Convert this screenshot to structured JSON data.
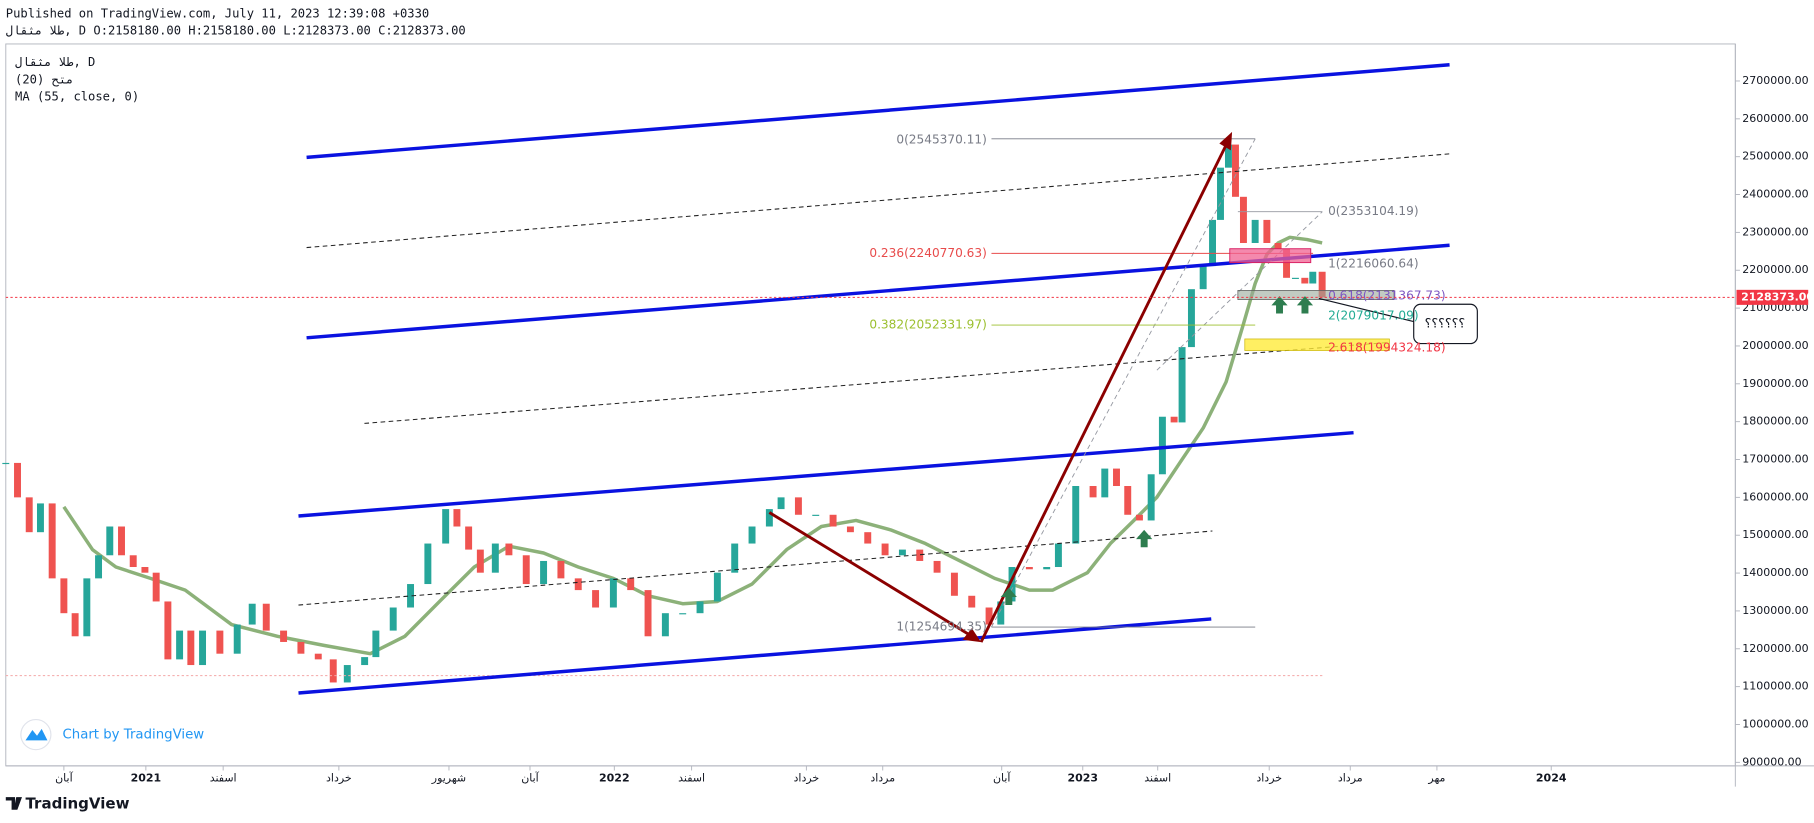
{
  "header": {
    "published": "Published on TradingView.com, July 11, 2023 12:39:08 +0330",
    "symbol_line": "طلا مثقال, D O:2158180.00 H:2158180.00 L:2128373.00 C:2128373.00"
  },
  "chart_data": {
    "type": "candlestick",
    "symbol": "طلا مثقال, D",
    "indicator": "متح (20)",
    "x": [
      2020.701,
      2020.726,
      2020.751,
      2020.775,
      2020.8,
      2020.825,
      2020.849,
      2020.874,
      2020.899,
      2020.923,
      2020.948,
      2020.973,
      2020.998,
      2021.022,
      2021.047,
      2021.072,
      2021.096,
      2021.121,
      2021.158,
      2021.195,
      2021.227,
      2021.257,
      2021.294,
      2021.331,
      2021.368,
      2021.4,
      2021.43,
      2021.467,
      2021.491,
      2021.528,
      2021.565,
      2021.602,
      2021.64,
      2021.664,
      2021.689,
      2021.714,
      2021.746,
      2021.775,
      2021.812,
      2021.849,
      2021.886,
      2021.923,
      2021.96,
      2021.998,
      2022.035,
      2022.072,
      2022.109,
      2022.146,
      2022.183,
      2022.22,
      2022.257,
      2022.294,
      2022.331,
      2022.356,
      2022.393,
      2022.43,
      2022.467,
      2022.504,
      2022.541,
      2022.578,
      2022.615,
      2022.652,
      2022.689,
      2022.726,
      2022.763,
      2022.8,
      2022.825,
      2022.849,
      2022.886,
      2022.923,
      2022.948,
      2022.985,
      2023.022,
      2023.047,
      2023.072,
      2023.096,
      2023.121,
      2023.146,
      2023.17,
      2023.195,
      2023.212,
      2023.232,
      2023.257,
      2023.277,
      2023.294,
      2023.311,
      2023.326,
      2023.343,
      2023.368,
      2023.393,
      2023.417,
      2023.435,
      2023.454,
      2023.474,
      2023.491,
      2023.511
    ],
    "values": [
      1691000,
      1600000,
      1508000,
      1584000,
      1386000,
      1294000,
      1233000,
      1386000,
      1447000,
      1523000,
      1447000,
      1416000,
      1401000,
      1325000,
      1172000,
      1248000,
      1157000,
      1248000,
      1187000,
      1264000,
      1319000,
      1248000,
      1218000,
      1187000,
      1172000,
      1111000,
      1157000,
      1178000,
      1248000,
      1309000,
      1371000,
      1478000,
      1569000,
      1523000,
      1462000,
      1401000,
      1478000,
      1447000,
      1371000,
      1432000,
      1386000,
      1355000,
      1309000,
      1386000,
      1355000,
      1233000,
      1294000,
      1294000,
      1325000,
      1401000,
      1478000,
      1523000,
      1569000,
      1600000,
      1554000,
      1554000,
      1523000,
      1508000,
      1478000,
      1447000,
      1462000,
      1432000,
      1401000,
      1340000,
      1309000,
      1264000,
      1325000,
      1416000,
      1410000,
      1416000,
      1478000,
      1630000,
      1600000,
      1676000,
      1630000,
      1554000,
      1539000,
      1661000,
      1813000,
      1798000,
      1997000,
      2150000,
      2211000,
      2333000,
      2471000,
      2532000,
      2394000,
      2272000,
      2333000,
      2272000,
      2257000,
      2180000,
      2180000,
      2165000,
      2196000,
      2128373
    ],
    "up_color": "#26a69a",
    "down_color": "#ef5350",
    "overlays": [
      {
        "type": "line",
        "name": "MA (55, close, 0)",
        "color": "#7fa86a",
        "x": [
          2020.825,
          2020.886,
          2020.936,
          2021.01,
          2021.084,
          2021.183,
          2021.281,
          2021.38,
          2021.479,
          2021.553,
          2021.627,
          2021.701,
          2021.775,
          2021.849,
          2021.923,
          2021.998,
          2022.072,
          2022.146,
          2022.22,
          2022.294,
          2022.368,
          2022.442,
          2022.516,
          2022.59,
          2022.664,
          2022.738,
          2022.812,
          2022.886,
          2022.936,
          2023.01,
          2023.059,
          2023.109,
          2023.158,
          2023.207,
          2023.257,
          2023.306,
          2023.343,
          2023.368,
          2023.393,
          2023.417,
          2023.442,
          2023.479,
          2023.511
        ],
        "values": [
          1575000,
          1462000,
          1416000,
          1386000,
          1355000,
          1264000,
          1233000,
          1209000,
          1187000,
          1233000,
          1325000,
          1416000,
          1471000,
          1453000,
          1416000,
          1386000,
          1340000,
          1319000,
          1325000,
          1371000,
          1462000,
          1523000,
          1539000,
          1514000,
          1478000,
          1432000,
          1386000,
          1355000,
          1355000,
          1401000,
          1478000,
          1539000,
          1600000,
          1691000,
          1783000,
          1905000,
          2058000,
          2165000,
          2242000,
          2272000,
          2287000,
          2281000,
          2272000
        ]
      }
    ],
    "xlim": [
      2020.701,
      2024.393
    ],
    "xticks": [
      {
        "value": 2020.825,
        "label": "آبان"
      },
      2021,
      {
        "value": 2021.165,
        "label": "اسفند"
      },
      {
        "value": 2021.412,
        "label": "خرداد"
      },
      {
        "value": 2021.647,
        "label": "شهریور"
      },
      {
        "value": 2021.82,
        "label": "آبان"
      },
      2022,
      {
        "value": 2022.165,
        "label": "اسفند"
      },
      {
        "value": 2022.41,
        "label": "خرداد"
      },
      {
        "value": 2022.573,
        "label": "مرداد"
      },
      {
        "value": 2022.827,
        "label": "آبان"
      },
      2023,
      {
        "value": 2023.16,
        "label": "اسفند"
      },
      {
        "value": 2023.398,
        "label": "خرداد"
      },
      {
        "value": 2023.571,
        "label": "مرداد"
      },
      {
        "value": 2023.756,
        "label": "مهر"
      },
      2024
    ],
    "ylim": [
      890700,
      2797800
    ],
    "yticks": [
      {
        "value": 900000,
        "label": "900000.00"
      },
      {
        "value": 1000000,
        "label": "1000000.00"
      },
      {
        "value": 1100000,
        "label": "1100000.00"
      },
      {
        "value": 1200000,
        "label": "1200000.00"
      },
      {
        "value": 1300000,
        "label": "1300000.00"
      },
      {
        "value": 1400000,
        "label": "1400000.00"
      },
      {
        "value": 1500000,
        "label": "1500000.00"
      },
      {
        "value": 1600000,
        "label": "1600000.00"
      },
      {
        "value": 1700000,
        "label": "1700000.00"
      },
      {
        "value": 1800000,
        "label": "1800000.00"
      },
      {
        "value": 1900000,
        "label": "1900000.00"
      },
      {
        "value": 2000000,
        "label": "2000000.00"
      },
      {
        "value": 2100000,
        "label": "2100000.00"
      },
      {
        "value": 2200000,
        "label": "2200000.00"
      },
      {
        "value": 2300000,
        "label": "2300000.00"
      },
      {
        "value": 2400000,
        "label": "2400000.00"
      },
      {
        "value": 2500000,
        "label": "2500000.00"
      },
      {
        "value": 2600000,
        "label": "2600000.00"
      },
      {
        "value": 2700000,
        "label": "2700000.00"
      }
    ],
    "last_price": {
      "value": 2128373,
      "label": "2128373.00",
      "color": "#f23645"
    },
    "annotations": [
      "0(2545370.11)",
      "0.236(2240770.63)",
      "0.382(2052331.97)",
      "1(1254694.35)",
      "0(2353104.19)",
      "1(2216060.64)",
      "0.618(2131367.73)",
      "2(2079017.09)",
      "2.618(1994324.18)"
    ],
    "note": "؟؟؟؟؟؟",
    "watermark": "Chart by TradingView"
  },
  "footer": {
    "brand": "TradingView"
  }
}
